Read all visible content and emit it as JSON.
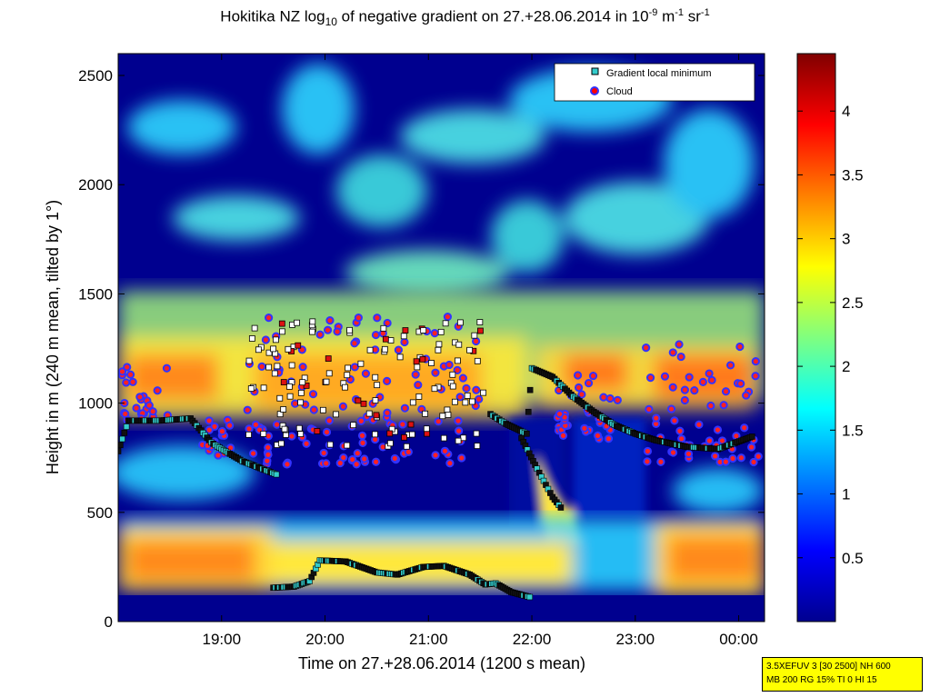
{
  "chart_data": {
    "type": "heatmap",
    "title": {
      "prefix": "Hokitika NZ log",
      "sub": "10",
      "middle": " of negative gradient on 27.+28.06.2014 in 10",
      "sup1": "-9",
      "mid2": " m",
      "sup2": "-1",
      "mid3": " sr",
      "sup3": "-1"
    },
    "xlabel": "Time on 27.+28.06.2014 (1200 s mean)",
    "ylabel": "Height in m (240 m mean, tilted by 1°)",
    "xlim_hours": [
      18.0,
      24.25
    ],
    "ylim": [
      0,
      2600
    ],
    "x_ticks": [
      {
        "h": 19,
        "label": "19:00"
      },
      {
        "h": 20,
        "label": "20:00"
      },
      {
        "h": 21,
        "label": "21:00"
      },
      {
        "h": 22,
        "label": "22:00"
      },
      {
        "h": 23,
        "label": "23:00"
      },
      {
        "h": 24,
        "label": "00:00"
      }
    ],
    "y_ticks": [
      0,
      500,
      1000,
      1500,
      2000,
      2500
    ],
    "colorbar": {
      "range": [
        0,
        4.45
      ],
      "ticks": [
        0.5,
        1,
        1.5,
        2,
        2.5,
        3,
        3.5,
        4
      ],
      "colormap": "jet"
    },
    "legend": {
      "position": "top-right",
      "entries": [
        {
          "label": "Gradient local minimum",
          "marker": "square",
          "fill": "#33cccc",
          "edge": "#000000"
        },
        {
          "label": "Cloud",
          "marker": "circle",
          "fill": "#ff0000",
          "edge": "#3333ff"
        }
      ]
    },
    "series": [
      {
        "name": "Gradient local minimum",
        "description": "lower layer (boundary layer top)",
        "x": [
          19.5,
          19.7,
          19.85,
          19.95,
          20.2,
          20.5,
          20.7,
          20.95,
          21.15,
          21.4,
          21.55,
          21.65,
          21.8,
          22.0
        ],
        "y": [
          155,
          160,
          185,
          280,
          275,
          225,
          215,
          250,
          255,
          215,
          170,
          175,
          135,
          110
        ]
      },
      {
        "name": "Gradient local minimum",
        "description": "elevated layer",
        "x": [
          18.0,
          18.1,
          18.4,
          18.7,
          18.9,
          19.0,
          19.2,
          19.55
        ],
        "y": [
          780,
          920,
          920,
          930,
          820,
          790,
          735,
          670
        ]
      },
      {
        "name": "Gradient local minimum",
        "description": "descending layer",
        "x": [
          21.6,
          21.75,
          21.95,
          22.0,
          22.2,
          22.4,
          22.6,
          22.8,
          23.0,
          23.2,
          23.5,
          23.8,
          24.15
        ],
        "y": [
          950,
          905,
          860,
          1160,
          1120,
          1030,
          960,
          900,
          860,
          830,
          800,
          790,
          850
        ]
      },
      {
        "name": "Gradient local minimum",
        "description": "descending branch",
        "x": [
          21.9,
          22.05,
          22.2,
          22.3
        ],
        "y": [
          840,
          700,
          570,
          510
        ]
      }
    ],
    "cloud_clusters": [
      {
        "x_range": [
          18.0,
          18.5
        ],
        "y_range": [
          920,
          1170
        ]
      },
      {
        "x_range": [
          18.8,
          19.1
        ],
        "y_range": [
          760,
          930
        ]
      },
      {
        "x_range": [
          19.25,
          21.55
        ],
        "y_range": [
          720,
          1400
        ]
      },
      {
        "x_range": [
          22.25,
          22.9
        ],
        "y_range": [
          830,
          1150
        ]
      },
      {
        "x_range": [
          23.1,
          24.2
        ],
        "y_range": [
          730,
          1270
        ]
      }
    ]
  },
  "info_box": {
    "line1": "3.5XEFUV 3 [30 2500] NH 600",
    "line2": "MB 200 RG 15% TI 0 HI 15"
  }
}
